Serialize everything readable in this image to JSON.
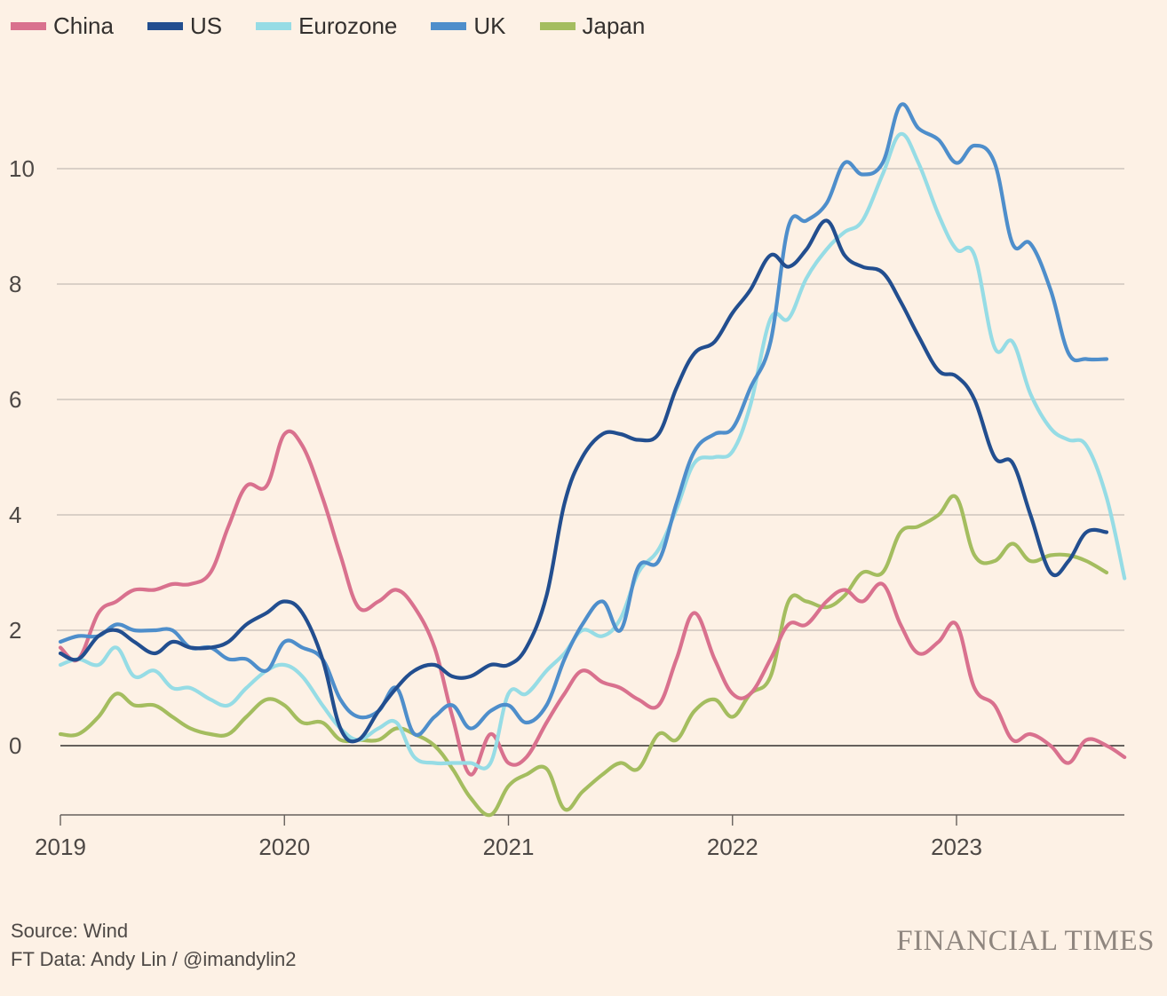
{
  "chart_data": {
    "type": "line",
    "ylim": [
      -1.2,
      11.2
    ],
    "xlim": [
      2019.0,
      2023.75
    ],
    "yticks": [
      0,
      2,
      4,
      6,
      8,
      10
    ],
    "xticks": [
      2019,
      2020,
      2021,
      2022,
      2023
    ],
    "ytick_labels": [
      "0",
      "2",
      "4",
      "6",
      "8",
      "10"
    ],
    "xtick_labels": [
      "2019",
      "2020",
      "2021",
      "2022",
      "2023"
    ],
    "grid": true,
    "legend_position": "top-left",
    "series": [
      {
        "name": "China",
        "color": "#d9718e",
        "x": [
          2019.0,
          2019.08,
          2019.17,
          2019.25,
          2019.33,
          2019.42,
          2019.5,
          2019.58,
          2019.67,
          2019.75,
          2019.83,
          2019.92,
          2020.0,
          2020.08,
          2020.17,
          2020.25,
          2020.33,
          2020.42,
          2020.5,
          2020.58,
          2020.67,
          2020.75,
          2020.83,
          2020.92,
          2021.0,
          2021.08,
          2021.17,
          2021.25,
          2021.33,
          2021.42,
          2021.5,
          2021.58,
          2021.67,
          2021.75,
          2021.83,
          2021.92,
          2022.0,
          2022.08,
          2022.17,
          2022.25,
          2022.33,
          2022.42,
          2022.5,
          2022.58,
          2022.67,
          2022.75,
          2022.83,
          2022.92,
          2023.0,
          2023.08,
          2023.17,
          2023.25,
          2023.33,
          2023.42,
          2023.5,
          2023.58,
          2023.67,
          2023.75
        ],
        "values": [
          1.7,
          1.5,
          2.3,
          2.5,
          2.7,
          2.7,
          2.8,
          2.8,
          3.0,
          3.8,
          4.5,
          4.5,
          5.4,
          5.2,
          4.3,
          3.3,
          2.4,
          2.5,
          2.7,
          2.4,
          1.7,
          0.5,
          -0.5,
          0.2,
          -0.3,
          -0.2,
          0.4,
          0.9,
          1.3,
          1.1,
          1.0,
          0.8,
          0.7,
          1.5,
          2.3,
          1.5,
          0.9,
          0.9,
          1.5,
          2.1,
          2.1,
          2.5,
          2.7,
          2.5,
          2.8,
          2.1,
          1.6,
          1.8,
          2.1,
          1.0,
          0.7,
          0.1,
          0.2,
          0.0,
          -0.3,
          0.1,
          0.0,
          -0.2
        ]
      },
      {
        "name": "US",
        "color": "#224e8f",
        "x": [
          2019.0,
          2019.08,
          2019.17,
          2019.25,
          2019.33,
          2019.42,
          2019.5,
          2019.58,
          2019.67,
          2019.75,
          2019.83,
          2019.92,
          2020.0,
          2020.08,
          2020.17,
          2020.25,
          2020.33,
          2020.42,
          2020.5,
          2020.58,
          2020.67,
          2020.75,
          2020.83,
          2020.92,
          2021.0,
          2021.08,
          2021.17,
          2021.25,
          2021.33,
          2021.42,
          2021.5,
          2021.58,
          2021.67,
          2021.75,
          2021.83,
          2021.92,
          2022.0,
          2022.08,
          2022.17,
          2022.25,
          2022.33,
          2022.42,
          2022.5,
          2022.58,
          2022.67,
          2022.75,
          2022.83,
          2022.92,
          2023.0,
          2023.08,
          2023.17,
          2023.25,
          2023.33,
          2023.42,
          2023.5,
          2023.58,
          2023.67
        ],
        "values": [
          1.6,
          1.5,
          1.9,
          2.0,
          1.8,
          1.6,
          1.8,
          1.7,
          1.7,
          1.8,
          2.1,
          2.3,
          2.5,
          2.3,
          1.5,
          0.3,
          0.1,
          0.6,
          1.0,
          1.3,
          1.4,
          1.2,
          1.2,
          1.4,
          1.4,
          1.7,
          2.6,
          4.2,
          5.0,
          5.4,
          5.4,
          5.3,
          5.4,
          6.2,
          6.8,
          7.0,
          7.5,
          7.9,
          8.5,
          8.3,
          8.6,
          9.1,
          8.5,
          8.3,
          8.2,
          7.7,
          7.1,
          6.5,
          6.4,
          6.0,
          5.0,
          4.9,
          4.0,
          3.0,
          3.2,
          3.7,
          3.7
        ]
      },
      {
        "name": "Eurozone",
        "color": "#96dce5",
        "x": [
          2019.0,
          2019.08,
          2019.17,
          2019.25,
          2019.33,
          2019.42,
          2019.5,
          2019.58,
          2019.67,
          2019.75,
          2019.83,
          2019.92,
          2020.0,
          2020.08,
          2020.17,
          2020.25,
          2020.33,
          2020.42,
          2020.5,
          2020.58,
          2020.67,
          2020.75,
          2020.83,
          2020.92,
          2021.0,
          2021.08,
          2021.17,
          2021.25,
          2021.33,
          2021.42,
          2021.5,
          2021.58,
          2021.67,
          2021.75,
          2021.83,
          2021.92,
          2022.0,
          2022.08,
          2022.17,
          2022.25,
          2022.33,
          2022.42,
          2022.5,
          2022.58,
          2022.67,
          2022.75,
          2022.83,
          2022.92,
          2023.0,
          2023.08,
          2023.17,
          2023.25,
          2023.33,
          2023.42,
          2023.5,
          2023.58,
          2023.67,
          2023.75
        ],
        "values": [
          1.4,
          1.5,
          1.4,
          1.7,
          1.2,
          1.3,
          1.0,
          1.0,
          0.8,
          0.7,
          1.0,
          1.3,
          1.4,
          1.2,
          0.7,
          0.3,
          0.1,
          0.3,
          0.4,
          -0.2,
          -0.3,
          -0.3,
          -0.3,
          -0.3,
          0.9,
          0.9,
          1.3,
          1.6,
          2.0,
          1.9,
          2.2,
          3.0,
          3.4,
          4.1,
          4.9,
          5.0,
          5.1,
          5.9,
          7.4,
          7.4,
          8.1,
          8.6,
          8.9,
          9.1,
          9.9,
          10.6,
          10.1,
          9.2,
          8.6,
          8.5,
          6.9,
          7.0,
          6.1,
          5.5,
          5.3,
          5.2,
          4.3,
          2.9
        ]
      },
      {
        "name": "UK",
        "color": "#4e8ecb",
        "x": [
          2019.0,
          2019.08,
          2019.17,
          2019.25,
          2019.33,
          2019.42,
          2019.5,
          2019.58,
          2019.67,
          2019.75,
          2019.83,
          2019.92,
          2020.0,
          2020.08,
          2020.17,
          2020.25,
          2020.33,
          2020.42,
          2020.5,
          2020.58,
          2020.67,
          2020.75,
          2020.83,
          2020.92,
          2021.0,
          2021.08,
          2021.17,
          2021.25,
          2021.33,
          2021.42,
          2021.5,
          2021.58,
          2021.67,
          2021.75,
          2021.83,
          2021.92,
          2022.0,
          2022.08,
          2022.17,
          2022.25,
          2022.33,
          2022.42,
          2022.5,
          2022.58,
          2022.67,
          2022.75,
          2022.83,
          2022.92,
          2023.0,
          2023.08,
          2023.17,
          2023.25,
          2023.33,
          2023.42,
          2023.5,
          2023.58,
          2023.67
        ],
        "values": [
          1.8,
          1.9,
          1.9,
          2.1,
          2.0,
          2.0,
          2.0,
          1.7,
          1.7,
          1.5,
          1.5,
          1.3,
          1.8,
          1.7,
          1.5,
          0.8,
          0.5,
          0.6,
          1.0,
          0.2,
          0.5,
          0.7,
          0.3,
          0.6,
          0.7,
          0.4,
          0.7,
          1.5,
          2.1,
          2.5,
          2.0,
          3.1,
          3.2,
          4.2,
          5.1,
          5.4,
          5.5,
          6.2,
          7.0,
          9.0,
          9.1,
          9.4,
          10.1,
          9.9,
          10.1,
          11.1,
          10.7,
          10.5,
          10.1,
          10.4,
          10.1,
          8.7,
          8.7,
          7.9,
          6.8,
          6.7,
          6.7
        ]
      },
      {
        "name": "Japan",
        "color": "#a4bd5f",
        "x": [
          2019.0,
          2019.08,
          2019.17,
          2019.25,
          2019.33,
          2019.42,
          2019.5,
          2019.58,
          2019.67,
          2019.75,
          2019.83,
          2019.92,
          2020.0,
          2020.08,
          2020.17,
          2020.25,
          2020.33,
          2020.42,
          2020.5,
          2020.58,
          2020.67,
          2020.75,
          2020.83,
          2020.92,
          2021.0,
          2021.08,
          2021.17,
          2021.25,
          2021.33,
          2021.42,
          2021.5,
          2021.58,
          2021.67,
          2021.75,
          2021.83,
          2021.92,
          2022.0,
          2022.08,
          2022.17,
          2022.25,
          2022.33,
          2022.42,
          2022.5,
          2022.58,
          2022.67,
          2022.75,
          2022.83,
          2022.92,
          2023.0,
          2023.08,
          2023.17,
          2023.25,
          2023.33,
          2023.42,
          2023.5,
          2023.58,
          2023.67
        ],
        "values": [
          0.2,
          0.2,
          0.5,
          0.9,
          0.7,
          0.7,
          0.5,
          0.3,
          0.2,
          0.2,
          0.5,
          0.8,
          0.7,
          0.4,
          0.4,
          0.1,
          0.1,
          0.1,
          0.3,
          0.2,
          0.0,
          -0.4,
          -0.9,
          -1.2,
          -0.7,
          -0.5,
          -0.4,
          -1.1,
          -0.8,
          -0.5,
          -0.3,
          -0.4,
          0.2,
          0.1,
          0.6,
          0.8,
          0.5,
          0.9,
          1.2,
          2.5,
          2.5,
          2.4,
          2.6,
          3.0,
          3.0,
          3.7,
          3.8,
          4.0,
          4.3,
          3.3,
          3.2,
          3.5,
          3.2,
          3.3,
          3.3,
          3.2,
          3.0
        ]
      }
    ]
  },
  "footer": {
    "source": "Source: Wind",
    "credit": "FT Data: Andy Lin / @imandylin2",
    "brand": "FINANCIAL TIMES"
  }
}
